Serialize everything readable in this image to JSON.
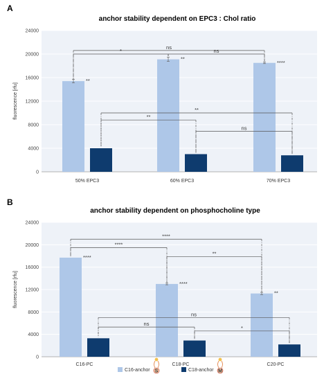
{
  "chart_data": [
    {
      "panel": "A",
      "type": "bar",
      "title": "anchor stability dependent on EPC3 : Chol ratio",
      "ylabel": "fluorescence [rfu]",
      "xlabel": "",
      "ylim": [
        0,
        24000
      ],
      "yticks": [
        "0",
        "4000",
        "8000",
        "12000",
        "16000",
        "20000",
        "24000"
      ],
      "categories": [
        "50% EPC3",
        "60% EPC3",
        "70% EPC3"
      ],
      "series": [
        {
          "name": "C16-anchor",
          "color": "#aec7e8",
          "values": [
            15400,
            19100,
            18500
          ],
          "errors": [
            300,
            350,
            120
          ],
          "labels": [
            "**",
            "**",
            "****"
          ]
        },
        {
          "name": "C18-anchor",
          "color": "#0e3b6e",
          "values": [
            4000,
            3000,
            2800
          ],
          "errors": [
            0,
            0,
            0
          ],
          "labels": [
            "",
            "",
            ""
          ]
        }
      ],
      "comparisons": [
        {
          "series": 0,
          "from": 0,
          "to": 2,
          "level": 20600,
          "label": "ns"
        },
        {
          "series": 0,
          "from": 0,
          "to": 1,
          "level": 20000,
          "label": "*"
        },
        {
          "series": 0,
          "from": 1,
          "to": 2,
          "level": 20000,
          "label": "ns"
        },
        {
          "series": 1,
          "from": 0,
          "to": 2,
          "level": 10000,
          "label": "**"
        },
        {
          "series": 1,
          "from": 0,
          "to": 1,
          "level": 8800,
          "label": "**"
        },
        {
          "series": 1,
          "from": 1,
          "to": 2,
          "level": 6900,
          "label": "ns"
        }
      ]
    },
    {
      "panel": "B",
      "type": "bar",
      "title": "anchor stability dependent on phosphocholine type",
      "ylabel": "fluorescence [rfu]",
      "xlabel": "",
      "ylim": [
        0,
        24000
      ],
      "yticks": [
        "0",
        "4000",
        "8000",
        "12000",
        "16000",
        "20000",
        "24000"
      ],
      "categories": [
        "C16-PC",
        "C18-PC",
        "C20-PC"
      ],
      "series": [
        {
          "name": "C16-anchor",
          "color": "#aec7e8",
          "values": [
            17700,
            13000,
            11300
          ],
          "errors": [
            0,
            150,
            200
          ],
          "labels": [
            "****",
            "****",
            "**"
          ]
        },
        {
          "name": "C18-anchor",
          "color": "#0e3b6e",
          "values": [
            3300,
            2900,
            2200
          ],
          "errors": [
            0,
            0,
            0
          ],
          "labels": [
            "",
            "",
            ""
          ]
        }
      ],
      "comparisons": [
        {
          "series": 0,
          "from": 0,
          "to": 2,
          "level": 21000,
          "label": "****"
        },
        {
          "series": 0,
          "from": 0,
          "to": 1,
          "level": 19500,
          "label": "****"
        },
        {
          "series": 0,
          "from": 1,
          "to": 2,
          "level": 17900,
          "label": "**"
        },
        {
          "series": 1,
          "from": 0,
          "to": 2,
          "level": 7000,
          "label": "ns"
        },
        {
          "series": 1,
          "from": 0,
          "to": 1,
          "level": 5300,
          "label": "ns"
        },
        {
          "series": 1,
          "from": 1,
          "to": 2,
          "level": 4600,
          "label": "*"
        }
      ]
    }
  ],
  "legend": {
    "position": "bottom",
    "items": [
      {
        "label": "C16-anchor",
        "color": "#aec7e8",
        "icon_letter": "S"
      },
      {
        "label": "C18-anchor",
        "color": "#0e3b6e",
        "icon_letter": "M"
      }
    ]
  }
}
